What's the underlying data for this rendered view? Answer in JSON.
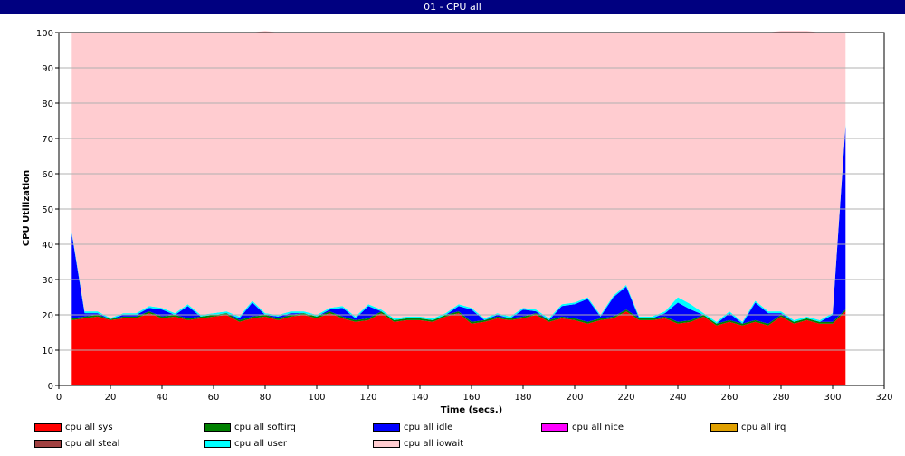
{
  "window": {
    "title": "01 - CPU all"
  },
  "chart_data": {
    "type": "area",
    "title": "01 - CPU all",
    "xlabel": "Time (secs.)",
    "ylabel": "CPU Utilization",
    "xlim": [
      0,
      320
    ],
    "ylim": [
      0,
      100
    ],
    "x_ticks": [
      0,
      20,
      40,
      60,
      80,
      100,
      120,
      140,
      160,
      180,
      200,
      220,
      240,
      260,
      280,
      300,
      320
    ],
    "y_ticks": [
      0,
      10,
      20,
      30,
      40,
      50,
      60,
      70,
      80,
      90,
      100
    ],
    "grid": "horizontal",
    "stacked": true,
    "x": [
      5,
      10,
      15,
      20,
      25,
      30,
      35,
      40,
      45,
      50,
      55,
      60,
      65,
      70,
      75,
      80,
      85,
      90,
      95,
      100,
      105,
      110,
      115,
      120,
      125,
      130,
      135,
      140,
      145,
      150,
      155,
      160,
      165,
      170,
      175,
      180,
      185,
      190,
      195,
      200,
      205,
      210,
      215,
      220,
      225,
      230,
      235,
      240,
      245,
      250,
      255,
      260,
      265,
      270,
      275,
      280,
      285,
      290,
      295,
      300,
      305
    ],
    "series": [
      {
        "name": "cpu all sys",
        "color": "#ff0000",
        "values": [
          18.5,
          19,
          19.5,
          18.5,
          19,
          19,
          20.5,
          19,
          19.5,
          18.5,
          19,
          19.5,
          20,
          18,
          19,
          19.5,
          18.5,
          19.5,
          20,
          19,
          20.5,
          19,
          18,
          18.5,
          20.5,
          18,
          18.5,
          18.5,
          18,
          19.5,
          20.5,
          17.5,
          18,
          19,
          18.5,
          19,
          20,
          18,
          19,
          18.5,
          17.5,
          18.5,
          19,
          21,
          18.5,
          18.5,
          19,
          17.5,
          18,
          19.5,
          17,
          18,
          17,
          18,
          17,
          19.5,
          17.5,
          18.5,
          17.5,
          17.5,
          21
        ]
      },
      {
        "name": "cpu all softirq",
        "color": "#008000",
        "values": [
          0.5,
          0.5,
          0.5,
          0.3,
          0.5,
          0.5,
          0.5,
          0.5,
          0.5,
          0.5,
          0.5,
          0.5,
          0.5,
          0.5,
          0.5,
          0.5,
          0.5,
          0.5,
          0.5,
          0.5,
          0.5,
          0.5,
          0.5,
          0.5,
          0.5,
          0.5,
          0.5,
          0.5,
          0.5,
          0.5,
          0.5,
          0.5,
          0.5,
          0.5,
          0.5,
          0.5,
          0.5,
          0.5,
          0.5,
          0.5,
          0.5,
          0.5,
          0.5,
          0.5,
          0.5,
          0.5,
          0.5,
          0.5,
          0.5,
          0.5,
          0.5,
          0.5,
          0.5,
          0.5,
          0.5,
          0.5,
          0.5,
          0.5,
          0.5,
          0.5,
          0.5
        ]
      },
      {
        "name": "cpu all idle",
        "color": "#0000ff",
        "values": [
          24,
          1,
          0.5,
          0,
          0.5,
          0.5,
          1,
          2,
          0,
          3.5,
          0,
          0,
          0,
          0.5,
          4,
          0,
          0.5,
          0.5,
          0,
          0,
          0.5,
          2.5,
          0.5,
          3.5,
          0,
          0,
          0,
          0,
          0,
          0,
          1.5,
          3.5,
          0,
          0.5,
          0,
          2,
          0.5,
          0,
          3,
          4,
          6.5,
          0.5,
          5.5,
          6.5,
          0,
          0,
          1,
          5.5,
          3,
          0,
          0,
          2,
          0,
          5,
          3,
          0.5,
          0,
          0,
          0,
          2,
          52
        ]
      },
      {
        "name": "cpu all nice",
        "color": "#ff00ff",
        "values": [
          0,
          0,
          0,
          0,
          0,
          0,
          0,
          0,
          0,
          0,
          0,
          0,
          0,
          0,
          0,
          0,
          0,
          0,
          0,
          0,
          0,
          0,
          0,
          0,
          0,
          0,
          0,
          0,
          0,
          0,
          0,
          0,
          0,
          0,
          0,
          0,
          0,
          0,
          0,
          0,
          0,
          0,
          0,
          0,
          0,
          0,
          0,
          0,
          0,
          0,
          0,
          0,
          0,
          0,
          0,
          0,
          0,
          0,
          0,
          0,
          0
        ]
      },
      {
        "name": "cpu all irq",
        "color": "#e0a000",
        "values": [
          0,
          0,
          0,
          0,
          0,
          0,
          0,
          0,
          0,
          0,
          0,
          0,
          0,
          0,
          0,
          0,
          0,
          0,
          0,
          0,
          0,
          0,
          0,
          0,
          0,
          0,
          0,
          0,
          0,
          0,
          0,
          0,
          0,
          0,
          0,
          0,
          0,
          0,
          0,
          0,
          0,
          0,
          0,
          0,
          0,
          0,
          0,
          0,
          0,
          0,
          0,
          0,
          0,
          0,
          0,
          0,
          0,
          0,
          0,
          0,
          0
        ]
      },
      {
        "name": "cpu all steal",
        "color": "#a04040",
        "values": [
          0,
          0,
          0,
          0,
          0,
          0,
          0,
          0,
          0,
          0,
          0,
          0,
          0,
          0,
          0,
          0,
          0,
          0,
          0,
          0,
          0,
          0,
          0,
          0,
          0,
          0,
          0,
          0,
          0,
          0,
          0,
          0,
          0,
          0,
          0,
          0,
          0,
          0,
          0,
          0,
          0,
          0,
          0,
          0,
          0,
          0,
          0,
          0,
          0,
          0,
          0,
          0,
          0,
          0,
          0,
          0,
          0,
          0,
          0,
          0,
          0
        ]
      },
      {
        "name": "cpu all user",
        "color": "#00ffff",
        "values": [
          0.5,
          0.5,
          0.5,
          0.3,
          0.5,
          0.5,
          0.5,
          0.5,
          0.5,
          0.5,
          0.5,
          0.5,
          0.5,
          0.5,
          0.5,
          0.5,
          0.5,
          0.5,
          0.5,
          0.5,
          0.5,
          0.5,
          0.5,
          0.5,
          0.5,
          0.5,
          0.5,
          0.5,
          0.5,
          0.5,
          0.5,
          0.5,
          0.5,
          0.5,
          0.5,
          0.5,
          0.5,
          0.5,
          0.5,
          0.5,
          0.5,
          0.5,
          0.5,
          0.5,
          0.5,
          0.5,
          0.5,
          1.5,
          1.5,
          0.5,
          0.5,
          0.5,
          0.5,
          0.5,
          0.5,
          0.5,
          0.5,
          0.5,
          0.5,
          0.5,
          0.5
        ]
      },
      {
        "name": "cpu all iowait",
        "color": "#ffccd0",
        "values": [
          56.5,
          79,
          79,
          80.9,
          79.5,
          79.5,
          77.5,
          78,
          79.5,
          77,
          80,
          79.5,
          79,
          80.5,
          76,
          80,
          80,
          79,
          79,
          80,
          78,
          77.5,
          80.5,
          77,
          78.5,
          81,
          80.5,
          80.5,
          81,
          79.5,
          77,
          78,
          81,
          79.5,
          80.5,
          78,
          78.5,
          81,
          77,
          76.5,
          75,
          80,
          74.5,
          71.5,
          80.5,
          80.5,
          79,
          75,
          77,
          79.5,
          82,
          79,
          82,
          76,
          79,
          79.5,
          82,
          81,
          81.5,
          79.5,
          26
        ]
      }
    ],
    "legend_position": "bottom"
  }
}
